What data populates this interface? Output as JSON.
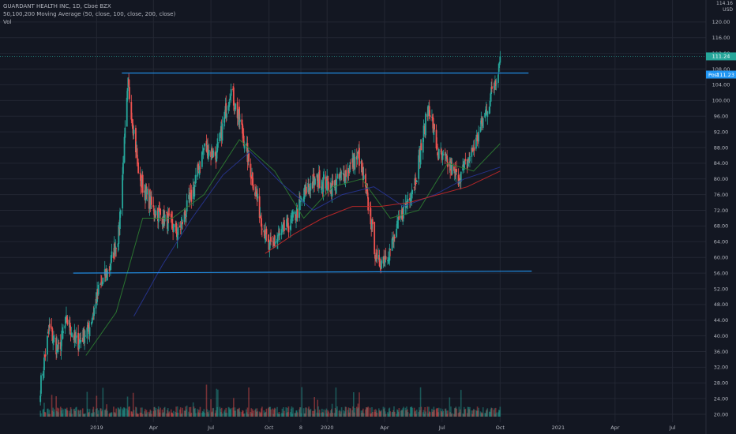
{
  "legend": {
    "symbol": "GUARDANT HEALTH INC, 1D, Cboe BZX",
    "ma": "50,100,200 Moving Average (50, close, 100, close, 200, close)",
    "vol": "Vol"
  },
  "axis_header": {
    "currency_line": "114.16",
    "currency": "USD"
  },
  "colors": {
    "background": "#131722",
    "grid": "#232733",
    "up": "#26a69a",
    "down": "#ef5350",
    "ma50": "#2e7d32",
    "ma100": "#283593",
    "ma200": "#c62828",
    "trendline": "#2196f3",
    "last_tag": "#26a69a",
    "post_tag": "#2196f3"
  },
  "chart_data": {
    "type": "candlestick",
    "title": "GUARDANT HEALTH INC, 1D, Cboe BZX",
    "ylabel": "USD",
    "ylim": [
      18,
      124
    ],
    "y_ticks": [
      "120.00",
      "116.00",
      "112.00",
      "108.00",
      "104.00",
      "100.00",
      "96.00",
      "92.00",
      "88.00",
      "84.00",
      "80.00",
      "76.00",
      "72.00",
      "68.00",
      "64.00",
      "60.00",
      "56.00",
      "52.00",
      "48.00",
      "44.00",
      "40.00",
      "36.00",
      "32.00",
      "28.00",
      "24.00",
      "20.00"
    ],
    "x_ticks": [
      "8",
      "2019",
      "Apr",
      "Jul",
      "Oct",
      "2020",
      "Apr",
      "Jul",
      "Oct",
      "2021",
      "Apr",
      "Jul"
    ],
    "grid": true,
    "close_path": [
      [
        "2018-10-04",
        27
      ],
      [
        "2018-10-18",
        42
      ],
      [
        "2018-11-01",
        36
      ],
      [
        "2018-11-15",
        44
      ],
      [
        "2018-12-01",
        38
      ],
      [
        "2018-12-20",
        42
      ],
      [
        "2019-01-05",
        52
      ],
      [
        "2019-01-20",
        57
      ],
      [
        "2019-02-05",
        66
      ],
      [
        "2019-02-20",
        104
      ],
      [
        "2019-03-10",
        80
      ],
      [
        "2019-04-01",
        72
      ],
      [
        "2019-04-20",
        70
      ],
      [
        "2019-05-10",
        66
      ],
      [
        "2019-06-01",
        76
      ],
      [
        "2019-06-20",
        88
      ],
      [
        "2019-07-10",
        86
      ],
      [
        "2019-08-01",
        103
      ],
      [
        "2019-08-20",
        92
      ],
      [
        "2019-09-10",
        76
      ],
      [
        "2019-10-01",
        62
      ],
      [
        "2019-10-20",
        66
      ],
      [
        "2019-11-10",
        70
      ],
      [
        "2019-12-01",
        78
      ],
      [
        "2019-12-20",
        80
      ],
      [
        "2020-01-10",
        78
      ],
      [
        "2020-02-01",
        82
      ],
      [
        "2020-02-20",
        86
      ],
      [
        "2020-03-10",
        70
      ],
      [
        "2020-03-20",
        58
      ],
      [
        "2020-04-10",
        62
      ],
      [
        "2020-05-01",
        72
      ],
      [
        "2020-05-20",
        80
      ],
      [
        "2020-06-10",
        99
      ],
      [
        "2020-06-25",
        86
      ],
      [
        "2020-07-10",
        84
      ],
      [
        "2020-07-25",
        80
      ],
      [
        "2020-08-10",
        84
      ],
      [
        "2020-08-25",
        90
      ],
      [
        "2020-09-10",
        98
      ],
      [
        "2020-09-25",
        106
      ],
      [
        "2020-10-01",
        111.24
      ]
    ],
    "moving_averages": [
      {
        "name": "MA 50",
        "color": "#2e7d32",
        "points": [
          [
            "2018-12-15",
            35
          ],
          [
            "2019-02-01",
            46
          ],
          [
            "2019-03-15",
            70
          ],
          [
            "2019-05-01",
            70
          ],
          [
            "2019-06-20",
            76
          ],
          [
            "2019-08-15",
            90
          ],
          [
            "2019-10-10",
            82
          ],
          [
            "2019-11-25",
            70
          ],
          [
            "2020-01-10",
            78
          ],
          [
            "2020-02-25",
            80
          ],
          [
            "2020-04-10",
            70
          ],
          [
            "2020-05-25",
            72
          ],
          [
            "2020-07-10",
            84
          ],
          [
            "2020-08-20",
            82
          ],
          [
            "2020-10-01",
            89
          ]
        ]
      },
      {
        "name": "MA 100",
        "color": "#283593",
        "points": [
          [
            "2019-03-01",
            45
          ],
          [
            "2019-04-15",
            58
          ],
          [
            "2019-06-01",
            70
          ],
          [
            "2019-07-20",
            81
          ],
          [
            "2019-09-01",
            87
          ],
          [
            "2019-10-20",
            79
          ],
          [
            "2019-12-10",
            72
          ],
          [
            "2020-01-25",
            76
          ],
          [
            "2020-03-15",
            78
          ],
          [
            "2020-05-01",
            73
          ],
          [
            "2020-06-20",
            76
          ],
          [
            "2020-08-05",
            80
          ],
          [
            "2020-10-01",
            83
          ]
        ]
      },
      {
        "name": "MA 200",
        "color": "#c62828",
        "points": [
          [
            "2019-09-25",
            61
          ],
          [
            "2019-11-10",
            66
          ],
          [
            "2019-12-25",
            70
          ],
          [
            "2020-02-10",
            73
          ],
          [
            "2020-03-25",
            73
          ],
          [
            "2020-05-10",
            74
          ],
          [
            "2020-06-25",
            76
          ],
          [
            "2020-08-10",
            78
          ],
          [
            "2020-10-01",
            82
          ]
        ]
      }
    ],
    "trendlines": [
      {
        "name": "resistance",
        "from": [
          "2019-02-10",
          107
        ],
        "to": [
          "2020-11-15",
          107
        ]
      },
      {
        "name": "support",
        "from": [
          "2018-11-25",
          56
        ],
        "to": [
          "2020-11-20",
          56.5
        ]
      }
    ],
    "price_tags": [
      {
        "label": "111.24",
        "value": 111.24,
        "kind": "last"
      },
      {
        "label": "Post",
        "value": 106.6,
        "price_text": "111.23",
        "kind": "post"
      }
    ]
  }
}
